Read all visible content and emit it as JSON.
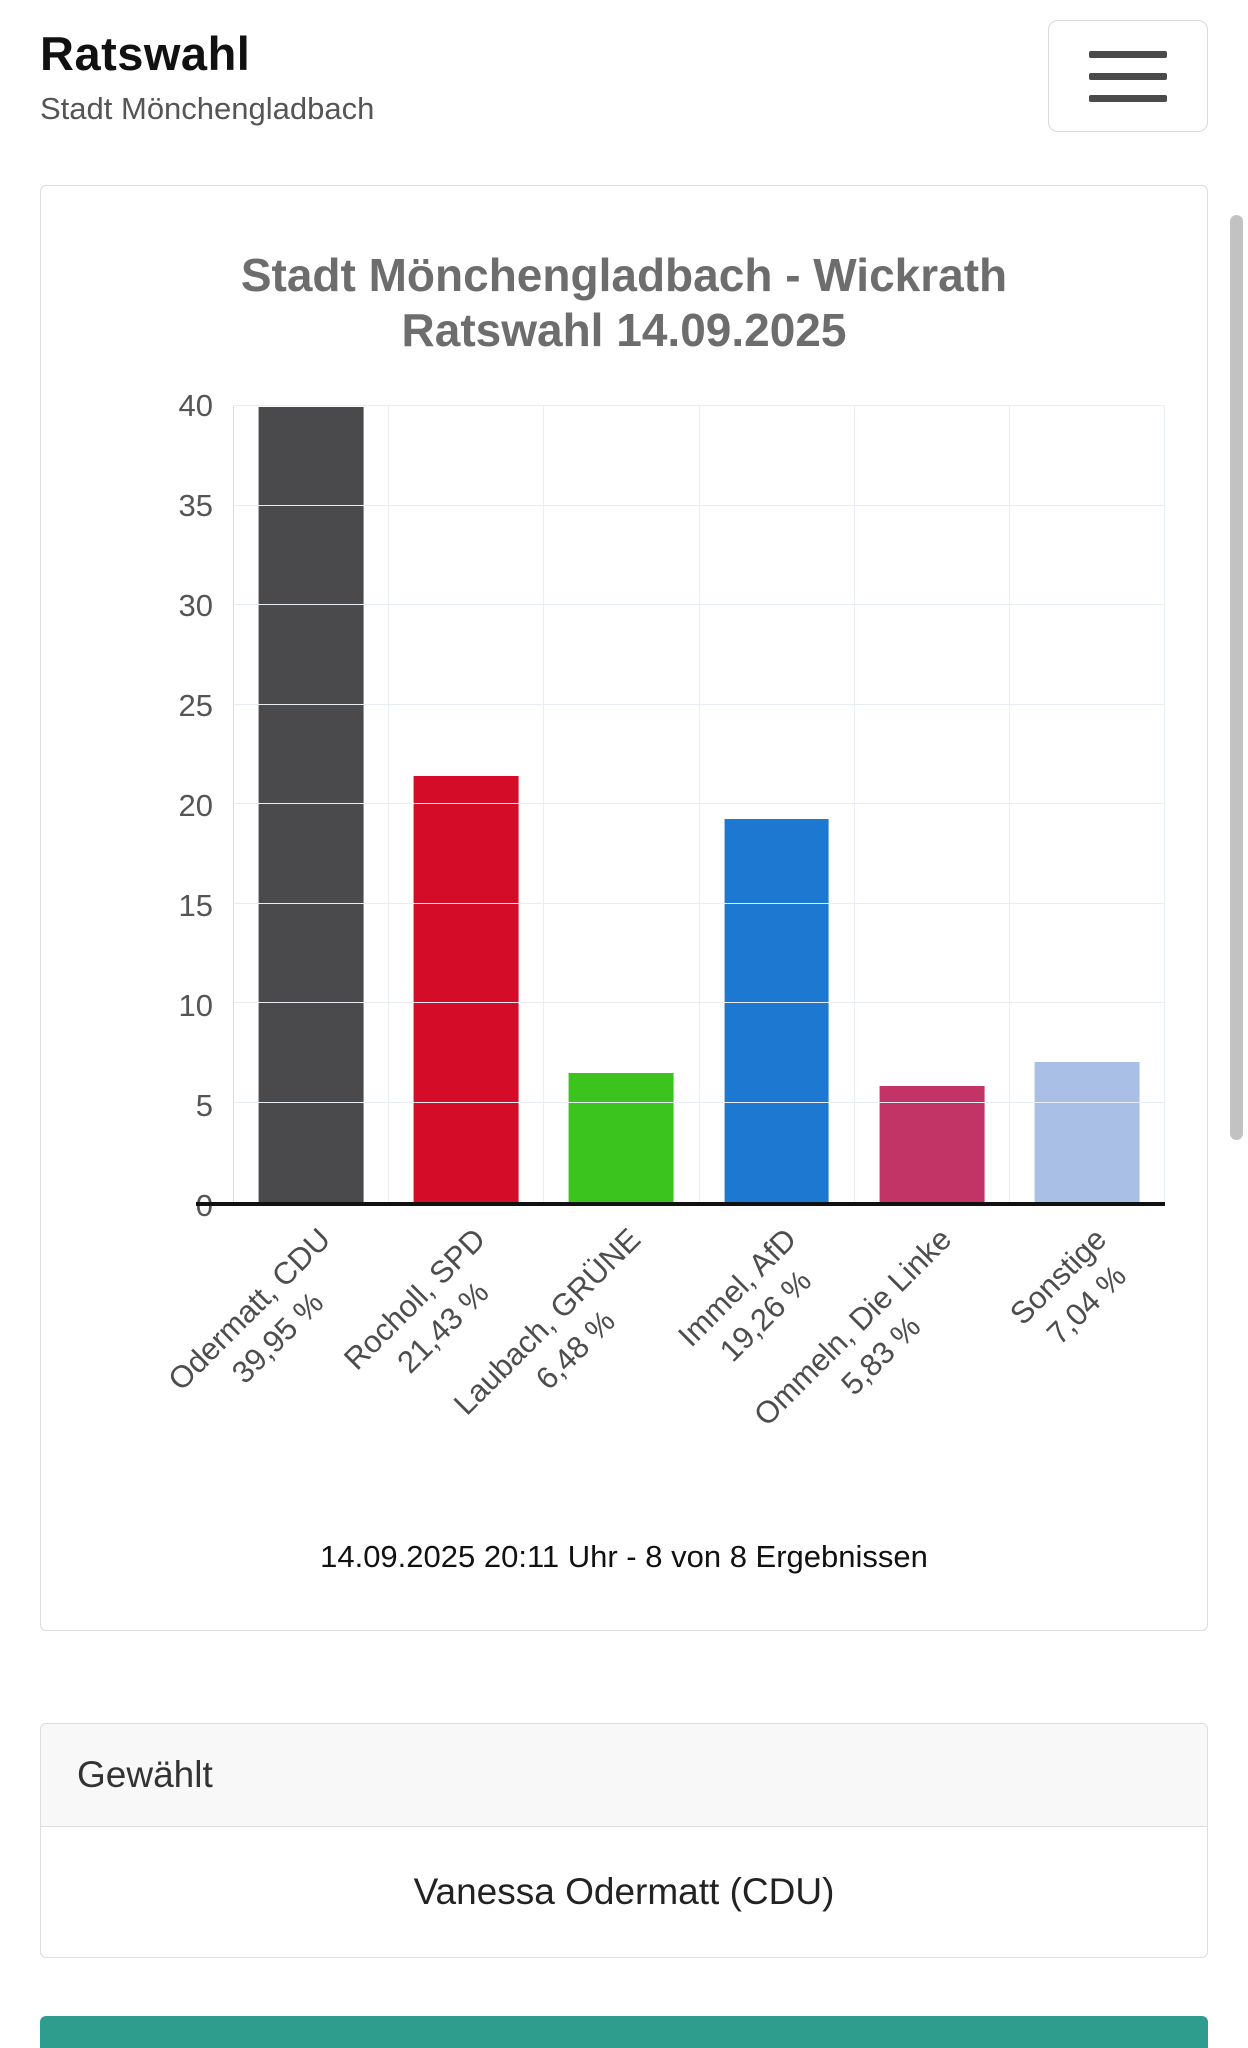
{
  "header": {
    "title": "Ratswahl",
    "subtitle": "Stadt Mönchengladbach"
  },
  "chart_data": {
    "type": "bar",
    "title": "Stadt Mönchengladbach - Wickrath Ratswahl 14.09.2025",
    "title_line1": "Stadt Mönchengladbach - Wickrath",
    "title_line2": "Ratswahl 14.09.2025",
    "xlabel": "",
    "ylabel": "",
    "ylim": [
      0,
      40
    ],
    "yticks": [
      0,
      5,
      10,
      15,
      20,
      25,
      30,
      35,
      40
    ],
    "grid": true,
    "legend": false,
    "categories": [
      "Odermatt, CDU",
      "Rocholl, SPD",
      "Laubach, GRÜNE",
      "Immel, AfD",
      "Ommeln, Die Linke",
      "Sonstige"
    ],
    "values": [
      39.95,
      21.43,
      6.48,
      19.26,
      5.83,
      7.04
    ],
    "bars": [
      {
        "name": "Odermatt, CDU",
        "percent_label": "39,95 %",
        "value": 39.95,
        "color": "#4a4a4c"
      },
      {
        "name": "Rocholl, SPD",
        "percent_label": "21,43 %",
        "value": 21.43,
        "color": "#d40c27"
      },
      {
        "name": "Laubach, GRÜNE",
        "percent_label": "6,48 %",
        "value": 6.48,
        "color": "#3cc41e"
      },
      {
        "name": "Immel, AfD",
        "percent_label": "19,26 %",
        "value": 19.26,
        "color": "#1d78d1"
      },
      {
        "name": "Ommeln, Die Linke",
        "percent_label": "5,83 %",
        "value": 5.83,
        "color": "#c23465"
      },
      {
        "name": "Sonstige",
        "percent_label": "7,04 %",
        "value": 7.04,
        "color": "#aabfe5"
      }
    ],
    "caption": "14.09.2025 20:11 Uhr - 8 von 8 Ergebnissen"
  },
  "elected": {
    "header": "Gewählt",
    "name": "Vanessa Odermatt (CDU)"
  }
}
